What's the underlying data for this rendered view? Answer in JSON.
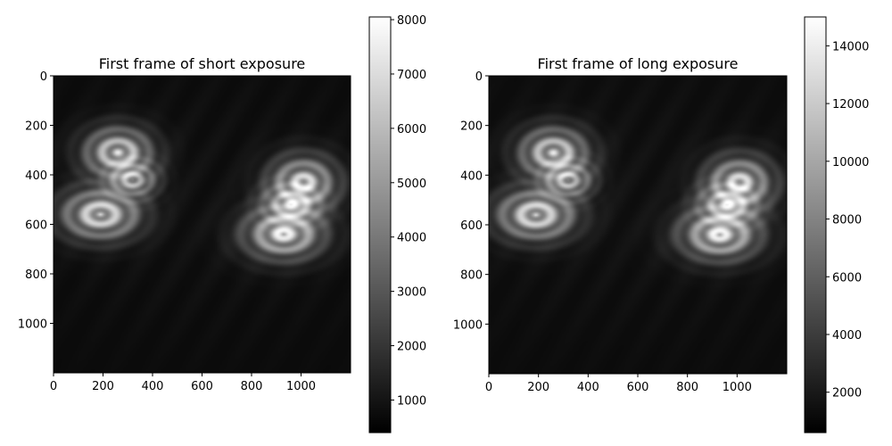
{
  "chart_data": [
    {
      "type": "heatmap",
      "title": "First frame of short exposure",
      "colormap": "gray",
      "xlabel": "",
      "ylabel": "",
      "xlim": [
        0,
        1200
      ],
      "ylim": [
        1200,
        0
      ],
      "x_ticks": [
        0,
        200,
        400,
        600,
        800,
        1000
      ],
      "y_ticks": [
        0,
        200,
        400,
        600,
        800,
        1000
      ],
      "colorbar": {
        "min": 400,
        "max": 8050,
        "ticks": [
          1000,
          2000,
          3000,
          4000,
          5000,
          6000,
          7000,
          8000
        ]
      },
      "background_value": 700,
      "blobs": [
        {
          "x": 260,
          "y": 310,
          "sx": 95,
          "sy": 70,
          "peak": 7200
        },
        {
          "x": 190,
          "y": 560,
          "sx": 110,
          "sy": 70,
          "peak": 7600
        },
        {
          "x": 320,
          "y": 420,
          "sx": 70,
          "sy": 50,
          "peak": 5000
        },
        {
          "x": 1010,
          "y": 430,
          "sx": 95,
          "sy": 75,
          "peak": 6800
        },
        {
          "x": 930,
          "y": 640,
          "sx": 110,
          "sy": 70,
          "peak": 7400
        },
        {
          "x": 960,
          "y": 520,
          "sx": 80,
          "sy": 55,
          "peak": 4800
        }
      ]
    },
    {
      "type": "heatmap",
      "title": "First frame of long exposure",
      "colormap": "gray",
      "xlabel": "",
      "ylabel": "",
      "xlim": [
        0,
        1200
      ],
      "ylim": [
        1200,
        0
      ],
      "x_ticks": [
        0,
        200,
        400,
        600,
        800,
        1000
      ],
      "y_ticks": [
        0,
        200,
        400,
        600,
        800,
        1000
      ],
      "colorbar": {
        "min": 600,
        "max": 15000,
        "ticks": [
          2000,
          4000,
          6000,
          8000,
          10000,
          12000,
          14000
        ]
      },
      "background_value": 1200,
      "blobs": [
        {
          "x": 260,
          "y": 310,
          "sx": 95,
          "sy": 70,
          "peak": 13500
        },
        {
          "x": 190,
          "y": 560,
          "sx": 110,
          "sy": 70,
          "peak": 14200
        },
        {
          "x": 320,
          "y": 420,
          "sx": 70,
          "sy": 50,
          "peak": 9400
        },
        {
          "x": 1010,
          "y": 430,
          "sx": 95,
          "sy": 75,
          "peak": 12700
        },
        {
          "x": 930,
          "y": 640,
          "sx": 110,
          "sy": 70,
          "peak": 13800
        },
        {
          "x": 960,
          "y": 520,
          "sx": 80,
          "sy": 55,
          "peak": 9000
        }
      ]
    }
  ]
}
